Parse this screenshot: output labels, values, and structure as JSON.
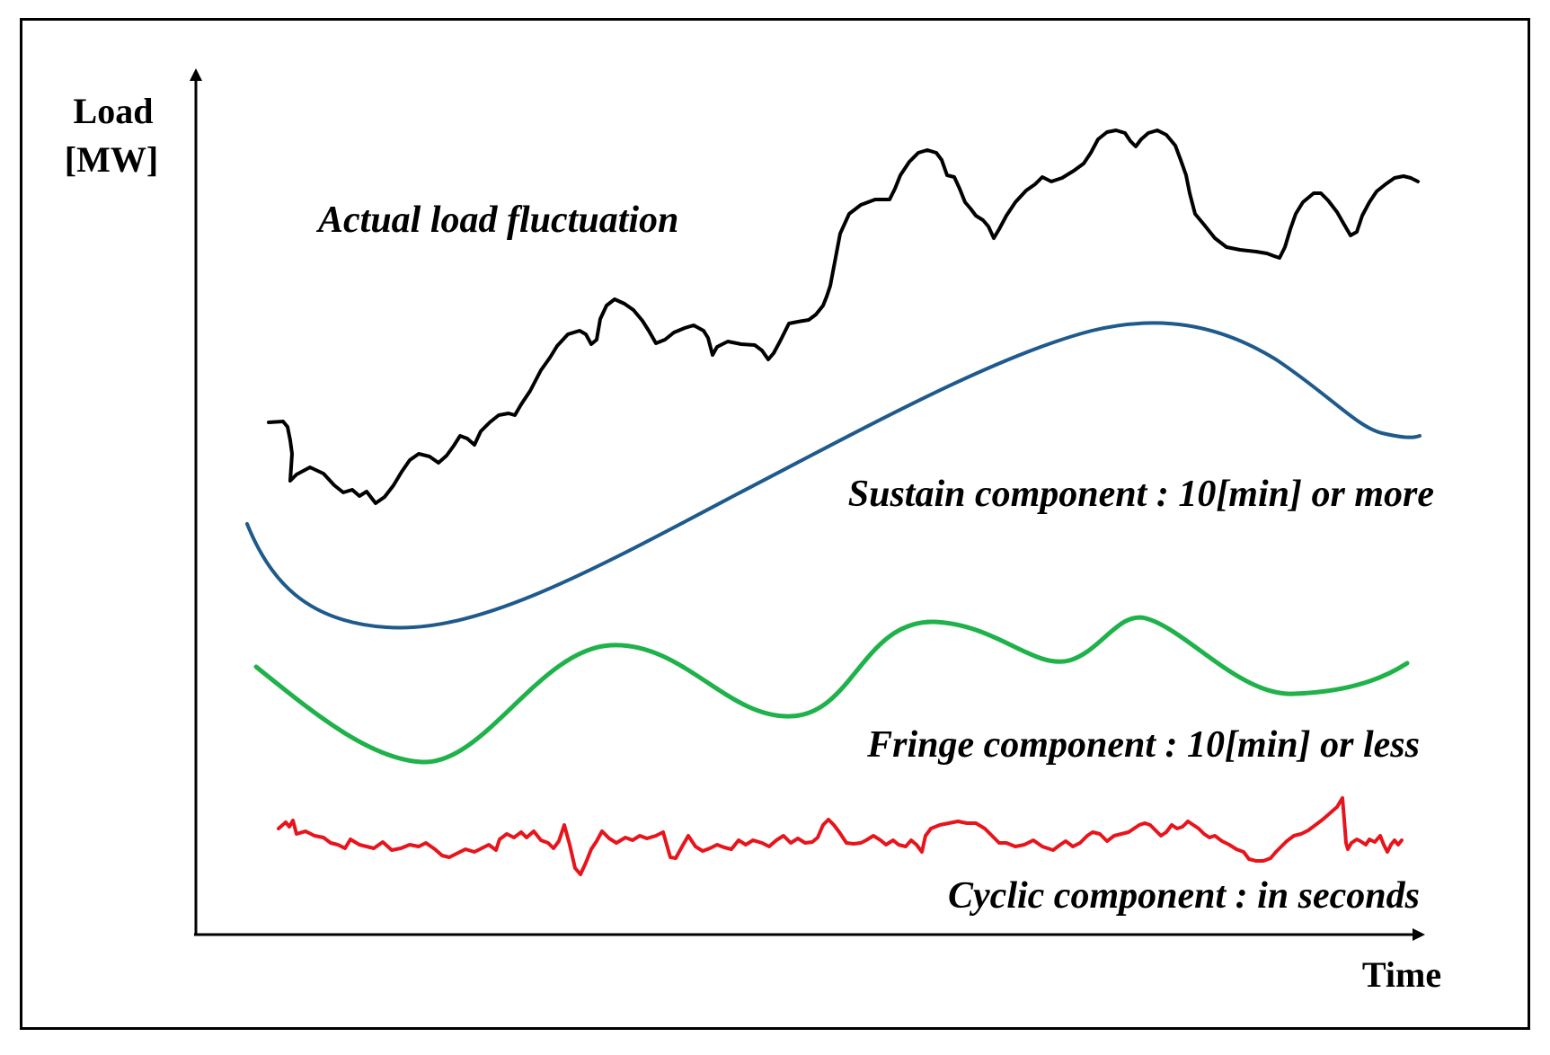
{
  "figure": {
    "y_axis_label_line1": "Load",
    "y_axis_label_line2": "[MW]",
    "x_axis_label": "Time"
  },
  "curves": [
    {
      "id": "actual",
      "label": "Actual load fluctuation",
      "color": "#000000"
    },
    {
      "id": "sustain",
      "label": "Sustain component : 10[min] or more",
      "color": "#1f5a8c"
    },
    {
      "id": "fringe",
      "label": "Fringe component : 10[min] or less",
      "color": "#1fb24a"
    },
    {
      "id": "cyclic",
      "label": "Cyclic component : in seconds",
      "color": "#e8141b"
    }
  ]
}
